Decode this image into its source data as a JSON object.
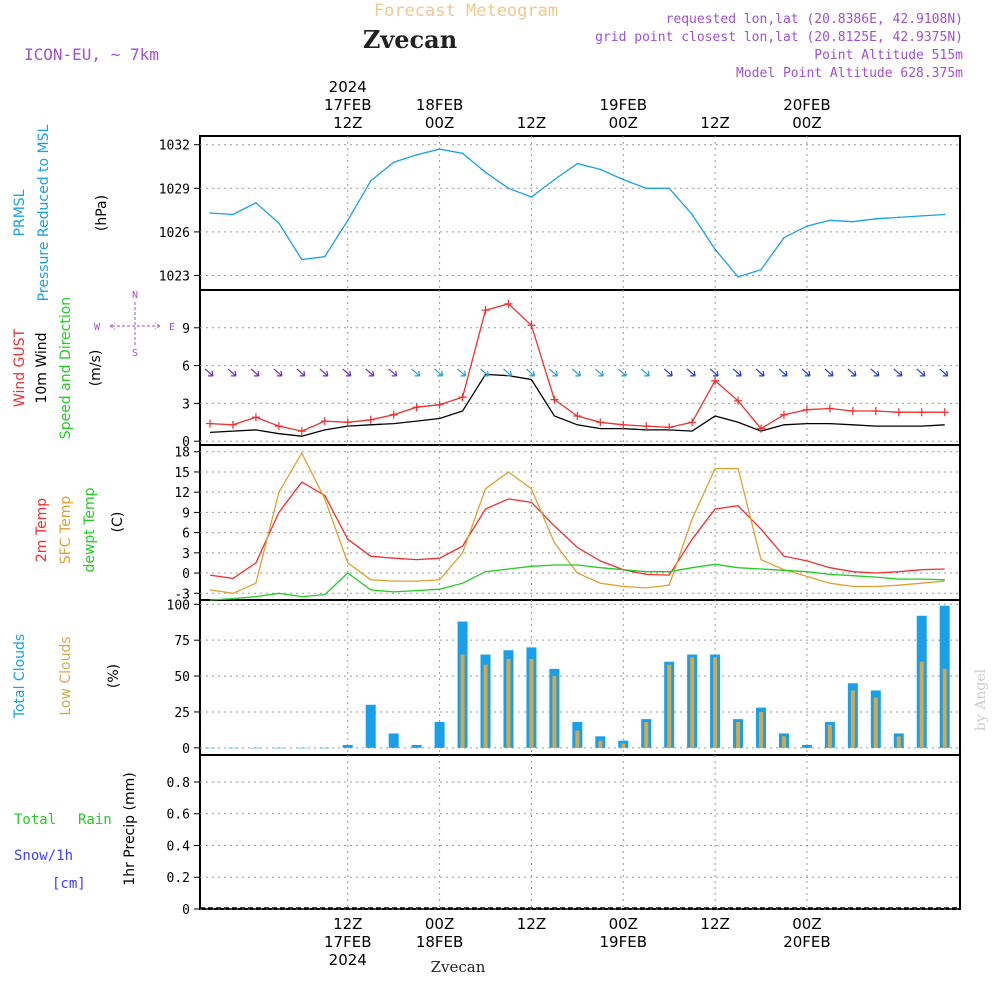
{
  "header": {
    "title": "Forecast Meteogram",
    "location": "Zvecan",
    "model": "ICON-EU, ~ 7km",
    "requested": "requested lon,lat (20.8386E, 42.9108N)",
    "grid_point": "grid point closest lon,lat (20.8125E, 42.9375N)",
    "altitude": "Point Altitude 515m",
    "model_altitude": "Model Point Altitude 628.375m",
    "footer_location": "Zvecan",
    "watermark": "by Angel"
  },
  "time_axis": {
    "top_labels": [
      {
        "hour": "12Z",
        "date": "17FEB",
        "year": "2024"
      },
      {
        "hour": "00Z",
        "date": "18FEB",
        "year": ""
      },
      {
        "hour": "12Z",
        "date": "",
        "year": ""
      },
      {
        "hour": "00Z",
        "date": "19FEB",
        "year": ""
      },
      {
        "hour": "12Z",
        "date": "",
        "year": ""
      },
      {
        "hour": "00Z",
        "date": "20FEB",
        "year": ""
      }
    ],
    "bottom_labels": [
      {
        "hour": "12Z",
        "date": "17FEB",
        "year": "2024"
      },
      {
        "hour": "00Z",
        "date": "18FEB",
        "year": ""
      },
      {
        "hour": "12Z",
        "date": "",
        "year": ""
      },
      {
        "hour": "00Z",
        "date": "19FEB",
        "year": ""
      },
      {
        "hour": "12Z",
        "date": "",
        "year": ""
      },
      {
        "hour": "00Z",
        "date": "20FEB",
        "year": ""
      }
    ]
  },
  "panels": {
    "pressure": {
      "label1": "PRMSL",
      "label2": "Pressure Reduced to MSL",
      "unit": "(hPa)",
      "ticks": [
        "1032",
        "1029",
        "1026",
        "1023"
      ]
    },
    "wind": {
      "label_gust": "Wind GUST",
      "label_wind": "10m Wind",
      "label_dir": "Speed and Direction",
      "unit": "(m/s)",
      "ticks": [
        "9",
        "6",
        "3",
        "0"
      ],
      "compass_n": "N",
      "compass_s": "S",
      "compass_w": "W",
      "compass_e": "E"
    },
    "temp": {
      "label1": "2m Temp",
      "label2": "SFC Temp",
      "label3": "dewpt Temp",
      "unit": "(C)",
      "ticks": [
        "18",
        "15",
        "12",
        "9",
        "6",
        "3",
        "0",
        "-3"
      ]
    },
    "clouds": {
      "label1": "Total Clouds",
      "label2": "Low Clouds",
      "unit": "(%)",
      "ticks": [
        "100",
        "75",
        "50",
        "25",
        "0"
      ]
    },
    "precip": {
      "label1": "Total",
      "label1b": "Rain",
      "label2": "Snow/1h",
      "label3": "[cm]",
      "unit": "1hr Precip (mm)",
      "ticks": [
        "0.8",
        "0.6",
        "0.4",
        "0.2",
        "0"
      ]
    }
  },
  "colors": {
    "pressure": "#1aa0e8",
    "gust": "#ee3030",
    "wind": "#000000",
    "temp2m": "#ee3030",
    "sfc": "#e0a030",
    "dewpt": "#22cc22",
    "total_clouds": "#1aa0e8",
    "low_clouds": "#d4a84a",
    "title": "#f0c890",
    "info": "#a050d0"
  },
  "chart_data": [
    {
      "type": "line",
      "name": "PRMSL",
      "x_hours": [
        0,
        3,
        6,
        9,
        12,
        15,
        18,
        21,
        24,
        27,
        30,
        33,
        36,
        39,
        42,
        45,
        48,
        51,
        54,
        57,
        60,
        63,
        66,
        69,
        72,
        75,
        78,
        81,
        84,
        87,
        90,
        93,
        96
      ],
      "values": [
        1027.3,
        1027.2,
        1028.0,
        1026.6,
        1024.1,
        1024.3,
        1026.8,
        1029.5,
        1030.8,
        1031.3,
        1031.7,
        1031.4,
        1030.1,
        1029.0,
        1028.4,
        1029.6,
        1030.7,
        1030.3,
        1029.6,
        1029.0,
        1029.0,
        1027.2,
        1024.8,
        1022.9,
        1023.4,
        1025.6,
        1026.4,
        1026.8,
        1026.7,
        1026.9,
        1027.0,
        1027.1,
        1027.2
      ],
      "ylim": [
        1022,
        1032.6
      ],
      "ylabel": "(hPa)"
    },
    {
      "type": "line",
      "name": "Wind",
      "x_hours": [
        0,
        3,
        6,
        9,
        12,
        15,
        18,
        21,
        24,
        27,
        30,
        33,
        36,
        39,
        42,
        45,
        48,
        51,
        54,
        57,
        60,
        63,
        66,
        69,
        72,
        75,
        78,
        81,
        84,
        87,
        90,
        93,
        96
      ],
      "series": [
        {
          "name": "Wind GUST",
          "values": [
            1.4,
            1.3,
            1.9,
            1.2,
            0.8,
            1.6,
            1.5,
            1.7,
            2.1,
            2.7,
            2.9,
            3.5,
            10.4,
            10.9,
            9.2,
            3.3,
            2.0,
            1.5,
            1.3,
            1.2,
            1.1,
            1.5,
            4.8,
            3.2,
            1.0,
            2.1,
            2.5,
            2.6,
            2.4,
            2.4,
            2.3,
            2.3,
            2.3
          ]
        },
        {
          "name": "10m Wind",
          "values": [
            0.7,
            0.8,
            0.9,
            0.6,
            0.4,
            0.9,
            1.2,
            1.3,
            1.4,
            1.6,
            1.8,
            2.4,
            5.3,
            5.2,
            4.9,
            2.0,
            1.3,
            1.0,
            1.0,
            0.9,
            0.9,
            0.8,
            2.0,
            1.5,
            0.8,
            1.3,
            1.4,
            1.4,
            1.3,
            1.2,
            1.2,
            1.2,
            1.3
          ]
        }
      ],
      "ylim": [
        -0.3,
        12
      ],
      "ylabel": "(m/s)"
    },
    {
      "type": "line",
      "name": "Temperature",
      "x_hours": [
        0,
        3,
        6,
        9,
        12,
        15,
        18,
        21,
        24,
        27,
        30,
        33,
        36,
        39,
        42,
        45,
        48,
        51,
        54,
        57,
        60,
        63,
        66,
        69,
        72,
        75,
        78,
        81,
        84,
        87,
        90,
        93,
        96
      ],
      "series": [
        {
          "name": "2m Temp",
          "values": [
            -0.3,
            -0.8,
            1.5,
            9.0,
            13.5,
            11.5,
            5.0,
            2.5,
            2.2,
            2.0,
            2.2,
            4.0,
            9.5,
            11.0,
            10.5,
            7.0,
            3.8,
            1.8,
            0.5,
            -0.2,
            -0.3,
            5.0,
            9.5,
            10.0,
            6.5,
            2.5,
            1.8,
            0.8,
            0.2,
            0.0,
            0.2,
            0.5,
            0.6
          ]
        },
        {
          "name": "SFC Temp",
          "values": [
            -2.5,
            -3.0,
            -1.5,
            12.0,
            17.8,
            11.0,
            1.5,
            -1.0,
            -1.2,
            -1.2,
            -1.0,
            3.0,
            12.5,
            15.0,
            12.5,
            4.5,
            0.0,
            -1.5,
            -2.0,
            -2.2,
            -1.8,
            8.0,
            15.5,
            15.5,
            2.0,
            0.5,
            -0.5,
            -1.5,
            -2.0,
            -2.0,
            -1.8,
            -1.5,
            -1.2
          ]
        },
        {
          "name": "dewpt Temp",
          "values": [
            -4.0,
            -3.8,
            -3.5,
            -3.0,
            -3.5,
            -3.2,
            0.0,
            -2.5,
            -2.8,
            -2.6,
            -2.4,
            -1.5,
            0.2,
            0.6,
            1.0,
            1.2,
            1.2,
            0.8,
            0.5,
            0.2,
            0.2,
            0.8,
            1.3,
            0.8,
            0.6,
            0.4,
            0.2,
            -0.2,
            -0.4,
            -0.6,
            -0.9,
            -0.9,
            -1.0
          ]
        }
      ],
      "ylim": [
        -4,
        19
      ],
      "ylabel": "(C)"
    },
    {
      "type": "bar",
      "name": "Clouds",
      "x_hours": [
        0,
        3,
        6,
        9,
        12,
        15,
        18,
        21,
        24,
        27,
        30,
        33,
        36,
        39,
        42,
        45,
        48,
        51,
        54,
        57,
        60,
        63,
        66,
        69,
        72,
        75,
        78,
        81,
        84,
        87,
        90,
        93,
        96
      ],
      "series": [
        {
          "name": "Total Clouds",
          "values": [
            0,
            0,
            0,
            0,
            0,
            0,
            2,
            30,
            10,
            2,
            18,
            88,
            65,
            68,
            70,
            55,
            18,
            8,
            5,
            20,
            60,
            65,
            65,
            20,
            28,
            10,
            2,
            18,
            45,
            40,
            10,
            92,
            99
          ]
        },
        {
          "name": "Low Clouds",
          "values": [
            0,
            0,
            0,
            0,
            0,
            0,
            0,
            0,
            0,
            0,
            0,
            65,
            58,
            62,
            62,
            50,
            12,
            5,
            3,
            18,
            58,
            63,
            63,
            18,
            25,
            8,
            0,
            16,
            40,
            35,
            8,
            60,
            55
          ]
        }
      ],
      "ylim": [
        -5,
        103
      ],
      "ylabel": "(%)"
    },
    {
      "type": "bar",
      "name": "Precip",
      "x_hours": [
        0,
        24,
        48,
        72,
        96
      ],
      "series": [
        {
          "name": "Total Rain",
          "values": [
            0,
            0,
            0,
            0,
            0
          ]
        },
        {
          "name": "Snow/1h",
          "values": [
            0,
            0,
            0,
            0,
            0
          ]
        }
      ],
      "ylim": [
        0,
        0.97
      ],
      "ylabel": "1hr Precip (mm)"
    }
  ]
}
